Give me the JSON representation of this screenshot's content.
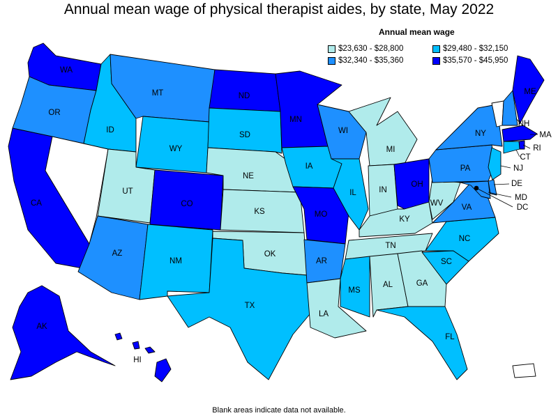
{
  "title": "Annual mean wage of physical therapist aides, by state, May 2022",
  "legend": {
    "title": "Annual mean wage",
    "bins": [
      {
        "label": "$23,630 - $28,800",
        "color": "#b0ebeb"
      },
      {
        "label": "$29,480 - $32,150",
        "color": "#00bfff"
      },
      {
        "label": "$32,340 - $35,360",
        "color": "#1e90ff"
      },
      {
        "label": "$35,570 - $45,950",
        "color": "#0000ff"
      }
    ]
  },
  "footnote": "Blank areas indicate data not available.",
  "no_data_color": "#ffffff",
  "states": [
    {
      "abbr": "WA",
      "bin": 3
    },
    {
      "abbr": "OR",
      "bin": 2
    },
    {
      "abbr": "CA",
      "bin": 3
    },
    {
      "abbr": "NV",
      "bin": null
    },
    {
      "abbr": "ID",
      "bin": 1
    },
    {
      "abbr": "MT",
      "bin": 2
    },
    {
      "abbr": "WY",
      "bin": 1
    },
    {
      "abbr": "UT",
      "bin": 0
    },
    {
      "abbr": "AZ",
      "bin": 2
    },
    {
      "abbr": "CO",
      "bin": 3
    },
    {
      "abbr": "NM",
      "bin": 1
    },
    {
      "abbr": "ND",
      "bin": 3
    },
    {
      "abbr": "SD",
      "bin": 1
    },
    {
      "abbr": "NE",
      "bin": 0
    },
    {
      "abbr": "KS",
      "bin": 0
    },
    {
      "abbr": "OK",
      "bin": 0
    },
    {
      "abbr": "TX",
      "bin": 1
    },
    {
      "abbr": "MN",
      "bin": 3
    },
    {
      "abbr": "IA",
      "bin": 1
    },
    {
      "abbr": "MO",
      "bin": 3
    },
    {
      "abbr": "AR",
      "bin": 2
    },
    {
      "abbr": "LA",
      "bin": 0
    },
    {
      "abbr": "WI",
      "bin": 2
    },
    {
      "abbr": "IL",
      "bin": 1
    },
    {
      "abbr": "MI",
      "bin": 0
    },
    {
      "abbr": "IN",
      "bin": 0
    },
    {
      "abbr": "OH",
      "bin": 3
    },
    {
      "abbr": "KY",
      "bin": 0
    },
    {
      "abbr": "TN",
      "bin": 0
    },
    {
      "abbr": "MS",
      "bin": 1
    },
    {
      "abbr": "AL",
      "bin": 0
    },
    {
      "abbr": "GA",
      "bin": 0
    },
    {
      "abbr": "FL",
      "bin": 1
    },
    {
      "abbr": "SC",
      "bin": 1
    },
    {
      "abbr": "NC",
      "bin": 1
    },
    {
      "abbr": "VA",
      "bin": 2
    },
    {
      "abbr": "WV",
      "bin": 0
    },
    {
      "abbr": "PA",
      "bin": 2
    },
    {
      "abbr": "NY",
      "bin": 2
    },
    {
      "abbr": "VT",
      "bin": null
    },
    {
      "abbr": "NH",
      "bin": 2
    },
    {
      "abbr": "ME",
      "bin": 3
    },
    {
      "abbr": "MA",
      "bin": 3
    },
    {
      "abbr": "RI",
      "bin": 3
    },
    {
      "abbr": "CT",
      "bin": 1
    },
    {
      "abbr": "NJ",
      "bin": 1
    },
    {
      "abbr": "DE",
      "bin": 2
    },
    {
      "abbr": "MD",
      "bin": 2
    },
    {
      "abbr": "DC",
      "bin": 3
    },
    {
      "abbr": "AK",
      "bin": 3
    },
    {
      "abbr": "HI",
      "bin": 3
    },
    {
      "abbr": "PR",
      "bin": null
    }
  ]
}
